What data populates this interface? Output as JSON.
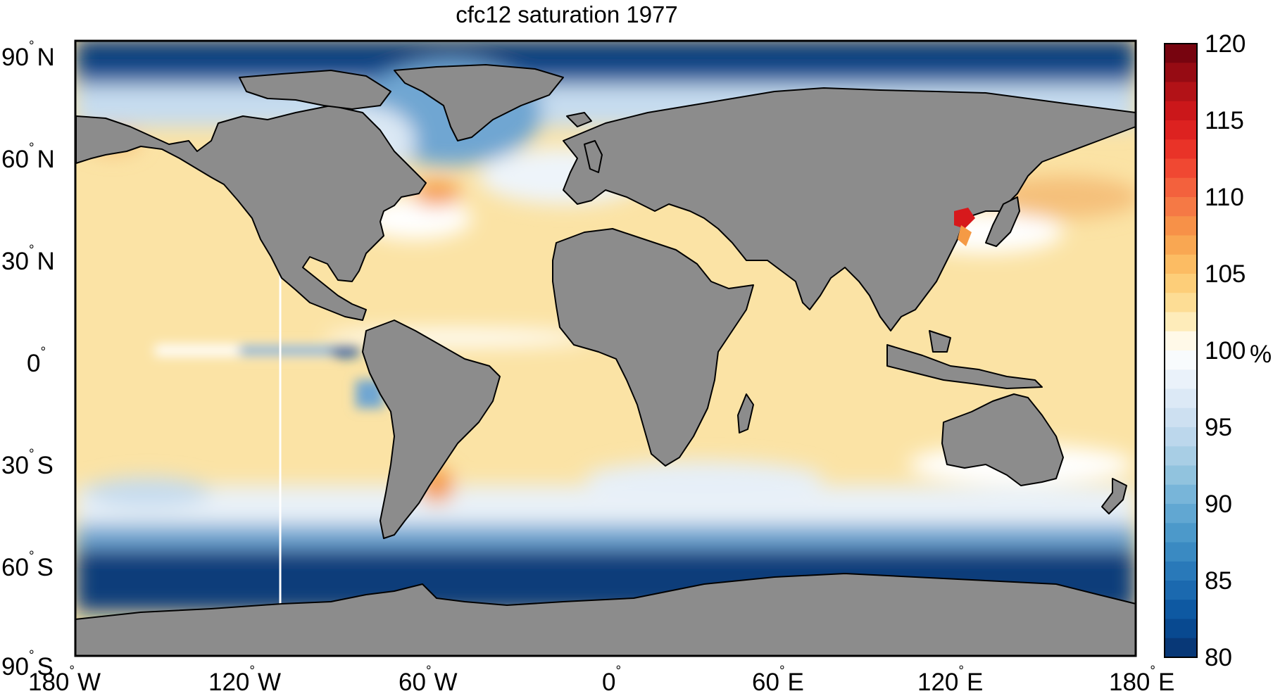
{
  "title": "cfc12 saturation 1977",
  "lat_labels": [
    {
      "deg": "90",
      "hemi": "N"
    },
    {
      "deg": "60",
      "hemi": "N"
    },
    {
      "deg": "30",
      "hemi": "N"
    },
    {
      "deg": "0",
      "hemi": ""
    },
    {
      "deg": "30",
      "hemi": "S"
    },
    {
      "deg": "60",
      "hemi": "S"
    },
    {
      "deg": "90",
      "hemi": "S"
    }
  ],
  "lon_labels": [
    {
      "deg": "180",
      "hemi": "W"
    },
    {
      "deg": "120",
      "hemi": "W"
    },
    {
      "deg": "60",
      "hemi": "W"
    },
    {
      "deg": "0",
      "hemi": ""
    },
    {
      "deg": "60",
      "hemi": "E"
    },
    {
      "deg": "120",
      "hemi": "E"
    },
    {
      "deg": "180",
      "hemi": "E"
    }
  ],
  "colorbar": {
    "min": 80,
    "max": 120,
    "ticks": [
      "120",
      "115",
      "110",
      "105",
      "100",
      "95",
      "90",
      "85",
      "80"
    ],
    "unit": "%"
  },
  "colors": {
    "land": "#8c8c8c",
    "deep_blue": "#0a3d7a",
    "mid_blue": "#4a8cc4",
    "light_blue": "#c6dcef",
    "white": "#ffffff",
    "pale_yellow": "#fbe3a5",
    "orange": "#f59a45",
    "red": "#d7191c",
    "dark_red": "#7a0014"
  }
}
